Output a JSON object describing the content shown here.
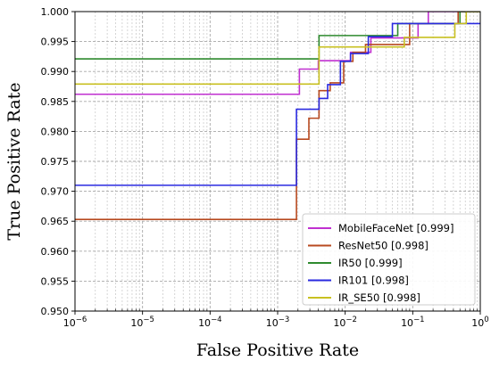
{
  "chart_data": {
    "type": "line",
    "step": true,
    "title": "",
    "xlabel": "False Positive Rate",
    "ylabel": "True Positive Rate",
    "xscale": "log",
    "xlim": [
      1e-06,
      1
    ],
    "ylim": [
      0.95,
      1.0
    ],
    "x_ticks": [
      {
        "value": 1e-06,
        "base": "10",
        "exp": "−6"
      },
      {
        "value": 1e-05,
        "base": "10",
        "exp": "−5"
      },
      {
        "value": 0.0001,
        "base": "10",
        "exp": "−4"
      },
      {
        "value": 0.001,
        "base": "10",
        "exp": "−3"
      },
      {
        "value": 0.01,
        "base": "10",
        "exp": "−2"
      },
      {
        "value": 0.1,
        "base": "10",
        "exp": "−1"
      },
      {
        "value": 1,
        "base": "10",
        "exp": "0"
      }
    ],
    "y_ticks": [
      {
        "value": 0.95,
        "label": "0.950"
      },
      {
        "value": 0.955,
        "label": "0.955"
      },
      {
        "value": 0.96,
        "label": "0.960"
      },
      {
        "value": 0.965,
        "label": "0.965"
      },
      {
        "value": 0.97,
        "label": "0.970"
      },
      {
        "value": 0.975,
        "label": "0.975"
      },
      {
        "value": 0.98,
        "label": "0.980"
      },
      {
        "value": 0.985,
        "label": "0.985"
      },
      {
        "value": 0.99,
        "label": "0.990"
      },
      {
        "value": 0.995,
        "label": "0.995"
      },
      {
        "value": 1.0,
        "label": "1.000"
      }
    ],
    "grid": true,
    "legend_position": "lower-right",
    "series": [
      {
        "name": "MobileFaceNet [0.999]",
        "color": "#c030d0",
        "points": [
          [
            1e-06,
            0.9862
          ],
          [
            0.0021,
            0.9862
          ],
          [
            0.0021,
            0.9904
          ],
          [
            0.004,
            0.9904
          ],
          [
            0.004,
            0.9918
          ],
          [
            0.012,
            0.9918
          ],
          [
            0.012,
            0.9932
          ],
          [
            0.024,
            0.9932
          ],
          [
            0.024,
            0.9956
          ],
          [
            0.12,
            0.9956
          ],
          [
            0.12,
            0.998
          ],
          [
            0.17,
            0.998
          ],
          [
            0.17,
            1.0
          ],
          [
            1,
            1.0
          ]
        ]
      },
      {
        "name": "ResNet50 [0.998]",
        "color": "#b84a20",
        "points": [
          [
            1e-06,
            0.9653
          ],
          [
            0.0019,
            0.9653
          ],
          [
            0.0019,
            0.9787
          ],
          [
            0.0029,
            0.9787
          ],
          [
            0.0029,
            0.9822
          ],
          [
            0.0041,
            0.9822
          ],
          [
            0.0041,
            0.9868
          ],
          [
            0.006,
            0.9868
          ],
          [
            0.006,
            0.9881
          ],
          [
            0.0095,
            0.9881
          ],
          [
            0.0095,
            0.9917
          ],
          [
            0.013,
            0.9917
          ],
          [
            0.013,
            0.9932
          ],
          [
            0.02,
            0.9932
          ],
          [
            0.02,
            0.9945
          ],
          [
            0.09,
            0.9945
          ],
          [
            0.09,
            0.998
          ],
          [
            0.47,
            0.998
          ],
          [
            0.47,
            1.0
          ],
          [
            1,
            1.0
          ]
        ]
      },
      {
        "name": "IR50 [0.999]",
        "color": "#2e8a2e",
        "points": [
          [
            1e-06,
            0.9921
          ],
          [
            0.0041,
            0.9921
          ],
          [
            0.0041,
            0.996
          ],
          [
            0.06,
            0.996
          ],
          [
            0.06,
            0.998
          ],
          [
            0.5,
            0.998
          ],
          [
            0.5,
            1.0
          ],
          [
            1,
            1.0
          ]
        ]
      },
      {
        "name": "IR101 [0.998]",
        "color": "#2a2ae0",
        "points": [
          [
            1e-06,
            0.971
          ],
          [
            0.0019,
            0.971
          ],
          [
            0.0019,
            0.9837
          ],
          [
            0.0041,
            0.9837
          ],
          [
            0.0041,
            0.9855
          ],
          [
            0.0055,
            0.9855
          ],
          [
            0.0055,
            0.9878
          ],
          [
            0.0085,
            0.9878
          ],
          [
            0.0085,
            0.9917
          ],
          [
            0.012,
            0.9917
          ],
          [
            0.012,
            0.993
          ],
          [
            0.022,
            0.993
          ],
          [
            0.022,
            0.9958
          ],
          [
            0.05,
            0.9958
          ],
          [
            0.05,
            0.998
          ],
          [
            1,
            0.998
          ]
        ]
      },
      {
        "name": "IR_SE50 [0.998]",
        "color": "#c8c020",
        "points": [
          [
            1e-06,
            0.9879
          ],
          [
            0.0041,
            0.9879
          ],
          [
            0.0041,
            0.9941
          ],
          [
            0.075,
            0.9941
          ],
          [
            0.075,
            0.9957
          ],
          [
            0.42,
            0.9957
          ],
          [
            0.42,
            0.998
          ],
          [
            0.62,
            0.998
          ],
          [
            0.62,
            1.0
          ],
          [
            1,
            1.0
          ]
        ]
      }
    ]
  }
}
